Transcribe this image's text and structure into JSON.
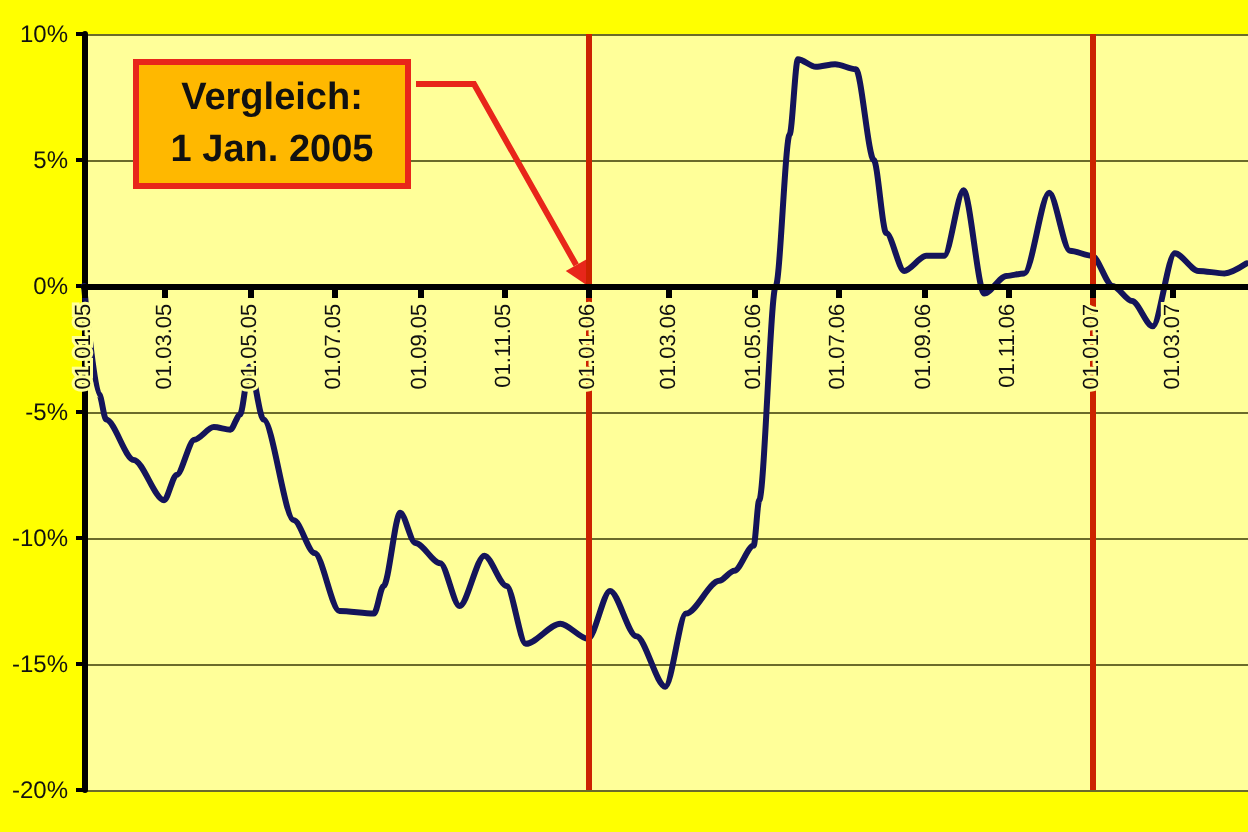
{
  "chart_data": {
    "type": "line",
    "x": [
      "2005-01-01",
      "2005-01-12",
      "2005-01-17",
      "2005-02-06",
      "2005-02-28",
      "2005-03-09",
      "2005-03-22",
      "2005-04-05",
      "2005-04-17",
      "2005-04-24",
      "2005-05-01",
      "2005-05-11",
      "2005-06-02",
      "2005-06-17",
      "2005-07-05",
      "2005-07-30",
      "2005-08-06",
      "2005-08-18",
      "2005-08-29",
      "2005-09-16",
      "2005-09-30",
      "2005-10-18",
      "2005-11-03",
      "2005-11-17",
      "2005-12-12",
      "2006-01-01",
      "2006-01-17",
      "2006-02-05",
      "2006-02-26",
      "2006-03-13",
      "2006-04-06",
      "2006-04-17",
      "2006-05-01",
      "2006-05-05",
      "2006-05-17",
      "2006-05-27",
      "2006-06-02",
      "2006-06-15",
      "2006-06-29",
      "2006-07-14",
      "2006-07-27",
      "2006-08-05",
      "2006-08-18",
      "2006-09-03",
      "2006-09-16",
      "2006-09-30",
      "2006-10-15",
      "2006-10-31",
      "2006-11-13",
      "2006-12-01",
      "2006-12-16",
      "2007-01-01",
      "2007-01-16",
      "2007-01-30",
      "2007-02-14",
      "2007-03-02",
      "2007-03-19",
      "2007-04-07",
      "2007-04-23"
    ],
    "series": [
      {
        "color": "#14145a",
        "values": [
          0,
          -4.3,
          -5.3,
          -6.9,
          -8.5,
          -7.5,
          -6.1,
          -5.6,
          -5.7,
          -5.1,
          -3.2,
          -5.3,
          -9.3,
          -10.6,
          -12.9,
          -13.0,
          -11.9,
          -9.0,
          -10.2,
          -11.0,
          -12.7,
          -10.7,
          -11.9,
          -14.2,
          -13.4,
          -14.0,
          -12.1,
          -13.9,
          -15.9,
          -13.0,
          -11.7,
          -11.3,
          -10.3,
          -8.5,
          0,
          6.0,
          9.0,
          8.7,
          8.8,
          8.6,
          5.0,
          2.1,
          0.6,
          1.2,
          1.2,
          3.8,
          -0.3,
          0.4,
          0.5,
          3.7,
          1.4,
          1.2,
          0,
          -0.6,
          -1.6,
          1.3,
          0.6,
          0.5,
          0.9
        ]
      }
    ],
    "xlim": [
      "2005-01-01",
      "2007-04-24"
    ],
    "xticks": [
      {
        "value": "2005-01-01",
        "label": "01.01.05"
      },
      {
        "value": "2005-03-01",
        "label": "01.03.05"
      },
      {
        "value": "2005-05-01",
        "label": "01.05.05"
      },
      {
        "value": "2005-07-01",
        "label": "01.07.05"
      },
      {
        "value": "2005-09-01",
        "label": "01.09.05"
      },
      {
        "value": "2005-11-01",
        "label": "01.11.05"
      },
      {
        "value": "2006-01-01",
        "label": "01.01.06"
      },
      {
        "value": "2006-03-01",
        "label": "01.03.06"
      },
      {
        "value": "2006-05-01",
        "label": "01.05.06"
      },
      {
        "value": "2006-07-01",
        "label": "01.07.06"
      },
      {
        "value": "2006-09-01",
        "label": "01.09.06"
      },
      {
        "value": "2006-11-01",
        "label": "01.11.06"
      },
      {
        "value": "2007-01-01",
        "label": "01.01.07"
      },
      {
        "value": "2007-03-01",
        "label": "01.03.07"
      }
    ],
    "ylim": [
      -20,
      10
    ],
    "yticks": [
      {
        "value": -20,
        "label": "-20%"
      },
      {
        "value": -15,
        "label": "-15%"
      },
      {
        "value": -10,
        "label": "-10%"
      },
      {
        "value": -5,
        "label": "-5%"
      },
      {
        "value": 0,
        "label": "0%"
      },
      {
        "value": 5,
        "label": "5%"
      },
      {
        "value": 10,
        "label": "10%"
      }
    ],
    "grid": "y",
    "marker": "none",
    "line_style": "solid",
    "ref_lines": [
      {
        "axis": "x",
        "value": "2006-01-01",
        "color": "#cc2200"
      },
      {
        "axis": "x",
        "value": "2007-01-01",
        "color": "#cc2200"
      }
    ],
    "annotations": [
      "Vergleich:\n1 Jan. 2005"
    ]
  }
}
